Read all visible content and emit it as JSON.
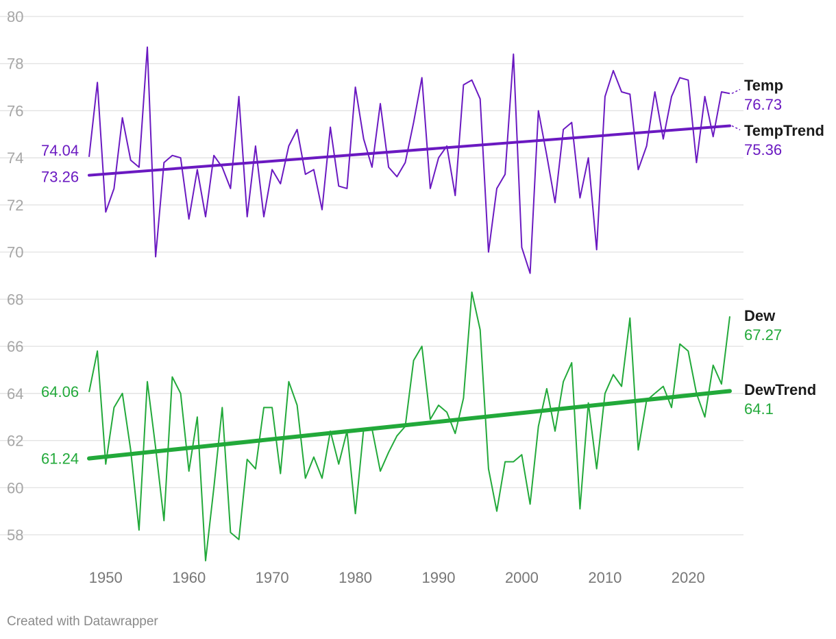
{
  "footer": "Created with Datawrapper",
  "chart_data": {
    "type": "line",
    "title": "",
    "xlabel": "",
    "ylabel": "",
    "xlim": [
      1946,
      2026
    ],
    "ylim": [
      57,
      80
    ],
    "yticks": [
      58,
      60,
      62,
      64,
      66,
      68,
      70,
      72,
      74,
      76,
      78,
      80
    ],
    "xticks": [
      1950,
      1960,
      1970,
      1980,
      1990,
      2000,
      2010,
      2020
    ],
    "grid": true,
    "x": [
      1948,
      1949,
      1950,
      1951,
      1952,
      1953,
      1954,
      1955,
      1956,
      1957,
      1958,
      1959,
      1960,
      1961,
      1962,
      1963,
      1964,
      1965,
      1966,
      1967,
      1968,
      1969,
      1970,
      1971,
      1972,
      1973,
      1974,
      1975,
      1976,
      1977,
      1978,
      1979,
      1980,
      1981,
      1982,
      1983,
      1984,
      1985,
      1986,
      1987,
      1988,
      1989,
      1990,
      1991,
      1992,
      1993,
      1994,
      1995,
      1996,
      1997,
      1998,
      1999,
      2000,
      2001,
      2002,
      2003,
      2004,
      2005,
      2006,
      2007,
      2008,
      2009,
      2010,
      2011,
      2012,
      2013,
      2014,
      2015,
      2016,
      2017,
      2018,
      2019,
      2020,
      2021,
      2022,
      2023,
      2024,
      2025
    ],
    "series": [
      {
        "name": "Temp",
        "color": "#6a19c1",
        "role": "data",
        "values": [
          74.04,
          77.2,
          71.7,
          72.7,
          75.7,
          73.9,
          73.6,
          78.7,
          69.8,
          73.8,
          74.1,
          74.0,
          71.4,
          73.5,
          71.5,
          74.1,
          73.6,
          72.7,
          76.6,
          71.5,
          74.5,
          71.5,
          73.5,
          72.9,
          74.5,
          75.2,
          73.3,
          73.5,
          71.8,
          75.3,
          72.8,
          72.7,
          77.0,
          74.8,
          73.6,
          76.3,
          73.6,
          73.2,
          73.8,
          75.5,
          77.4,
          72.7,
          74.0,
          74.5,
          72.4,
          77.1,
          77.3,
          76.5,
          70.0,
          72.7,
          73.3,
          78.4,
          70.2,
          69.1,
          76.0,
          74.1,
          72.1,
          75.2,
          75.5,
          72.3,
          74.0,
          70.1,
          76.6,
          77.7,
          76.8,
          76.7,
          73.5,
          74.5,
          76.8,
          74.8,
          76.6,
          77.4,
          77.3,
          73.8,
          76.6,
          74.9,
          76.8,
          76.73
        ]
      },
      {
        "name": "TempTrend",
        "color": "#6a19c1",
        "role": "trend",
        "values_start_end": [
          73.26,
          75.36
        ]
      },
      {
        "name": "Dew",
        "color": "#22a93a",
        "role": "data",
        "values": [
          64.06,
          65.8,
          61.0,
          63.4,
          64.0,
          61.6,
          58.2,
          64.5,
          61.7,
          58.6,
          64.7,
          64.0,
          60.7,
          63.0,
          56.9,
          60.0,
          63.4,
          58.1,
          57.8,
          61.2,
          60.8,
          63.4,
          63.4,
          60.6,
          64.5,
          63.5,
          60.4,
          61.3,
          60.4,
          62.4,
          61.0,
          62.4,
          58.9,
          62.5,
          62.5,
          60.7,
          61.5,
          62.2,
          62.6,
          65.4,
          66.0,
          62.9,
          63.5,
          63.2,
          62.3,
          63.8,
          68.3,
          66.7,
          60.8,
          59.0,
          61.1,
          61.1,
          61.4,
          59.3,
          62.6,
          64.2,
          62.4,
          64.5,
          65.3,
          59.1,
          63.6,
          60.8,
          64.0,
          64.8,
          64.3,
          67.2,
          61.6,
          63.7,
          64.0,
          64.3,
          63.4,
          66.1,
          65.8,
          64.0,
          63.0,
          65.2,
          64.4,
          67.27
        ]
      },
      {
        "name": "DewTrend",
        "color": "#22a93a",
        "role": "trend",
        "values_start_end": [
          61.24,
          64.1
        ]
      }
    ],
    "start_labels": {
      "Temp": "74.04",
      "TempTrend": "73.26",
      "Dew": "64.06",
      "DewTrend": "61.24"
    },
    "end_labels": {
      "Temp": "76.73",
      "TempTrend": "75.36",
      "Dew": "67.27",
      "DewTrend": "64.1"
    }
  }
}
